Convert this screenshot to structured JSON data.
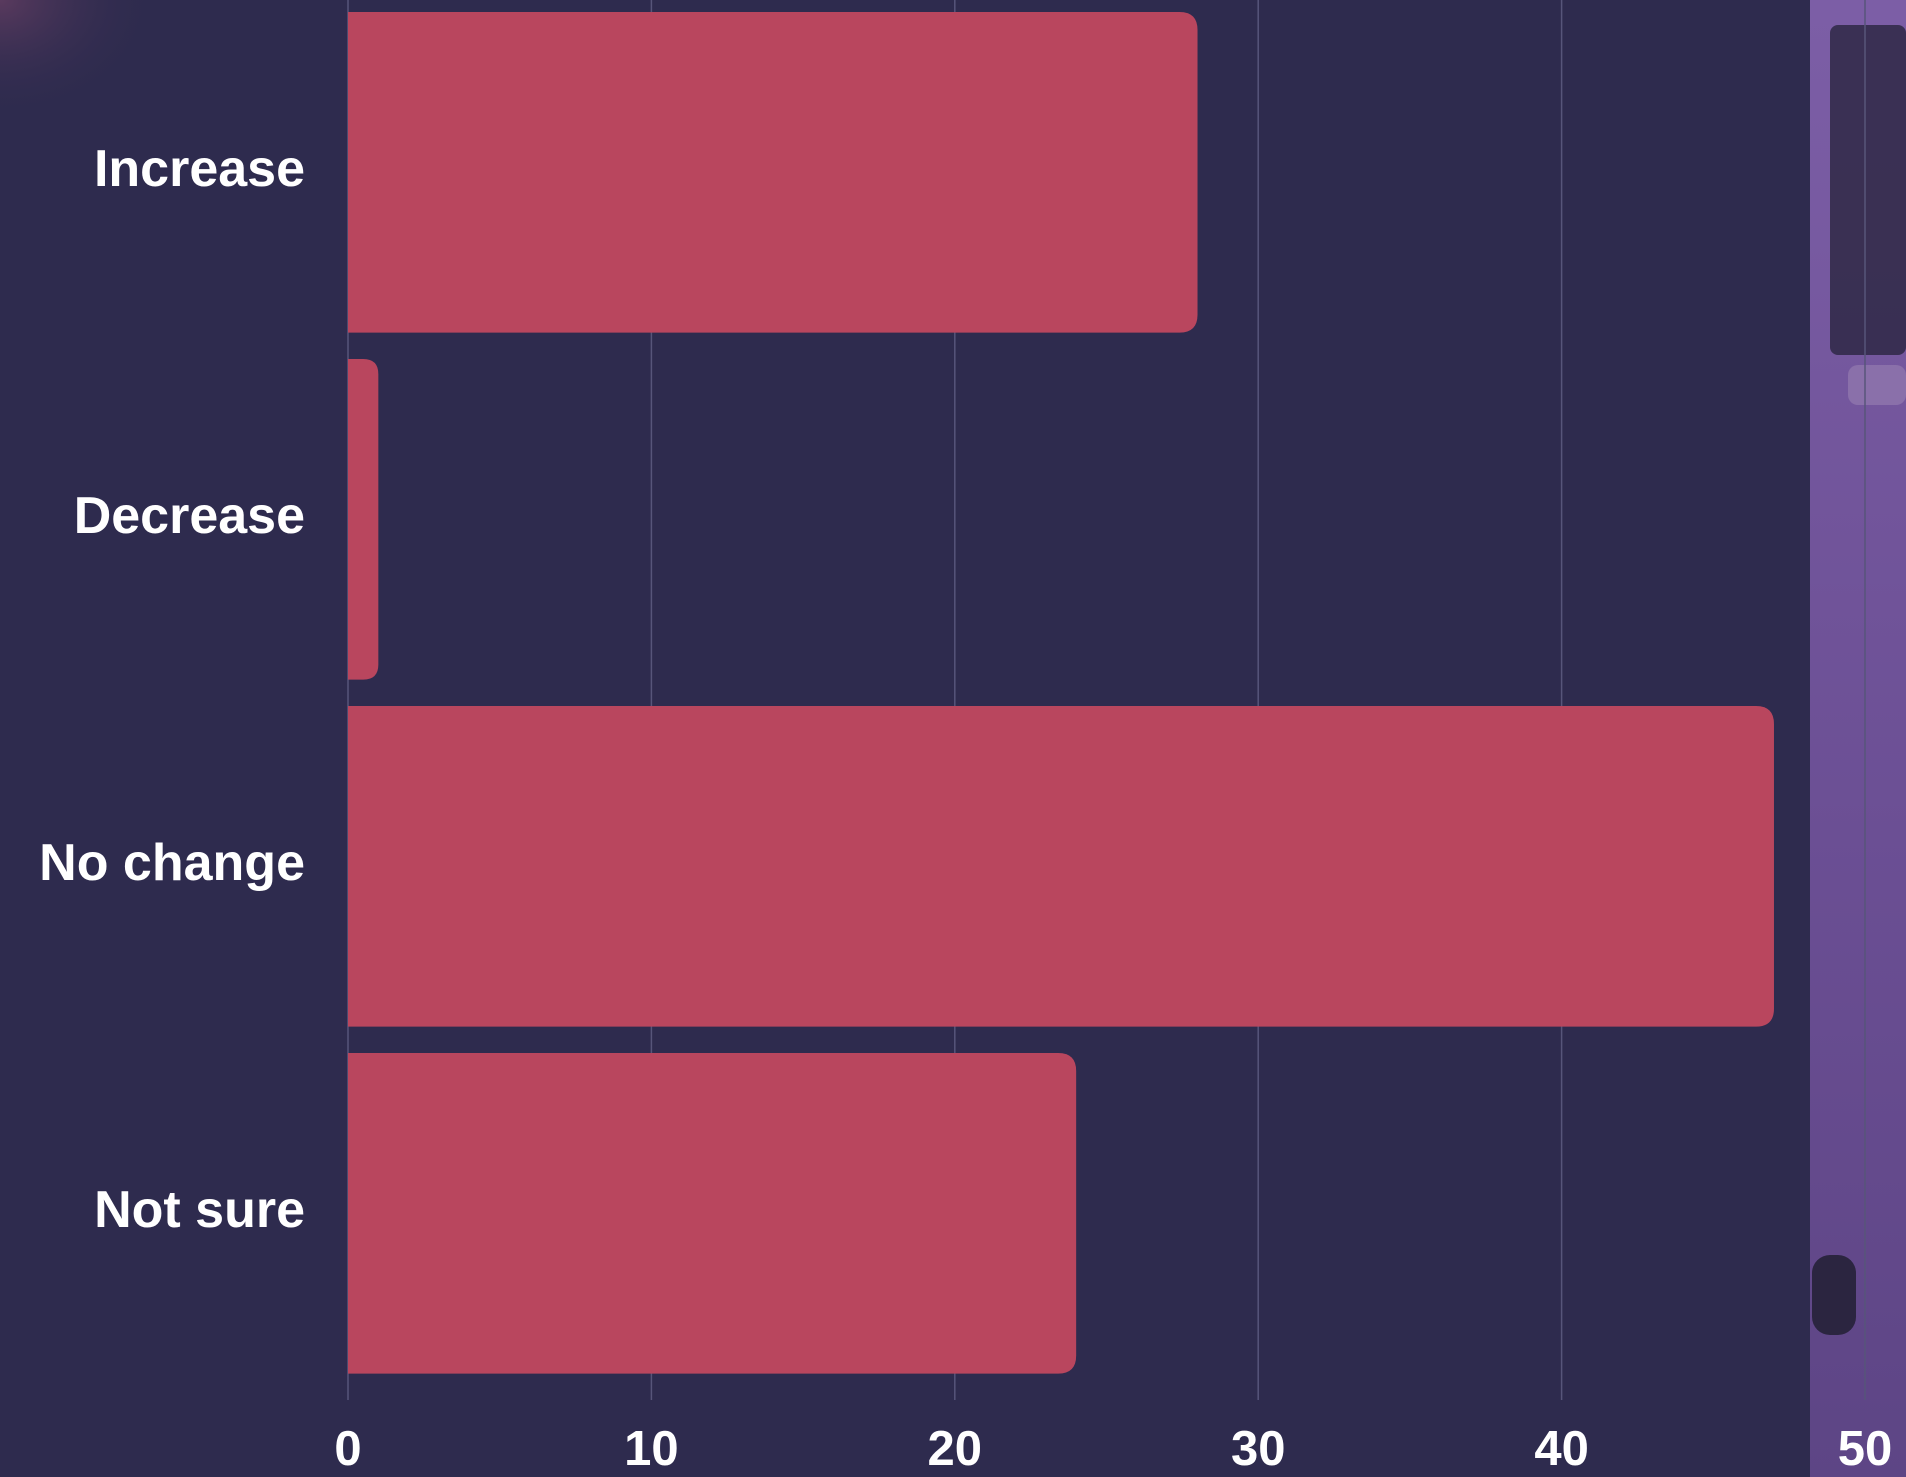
{
  "chart_data": {
    "type": "bar",
    "orientation": "horizontal",
    "categories": [
      "Increase",
      "Decrease",
      "No change",
      "Not sure"
    ],
    "values": [
      28,
      1,
      47,
      24
    ],
    "color": "#b9465e",
    "xlim": [
      0,
      50
    ],
    "xticks": [
      0,
      10,
      20,
      30,
      40,
      50
    ],
    "grid": true
  }
}
